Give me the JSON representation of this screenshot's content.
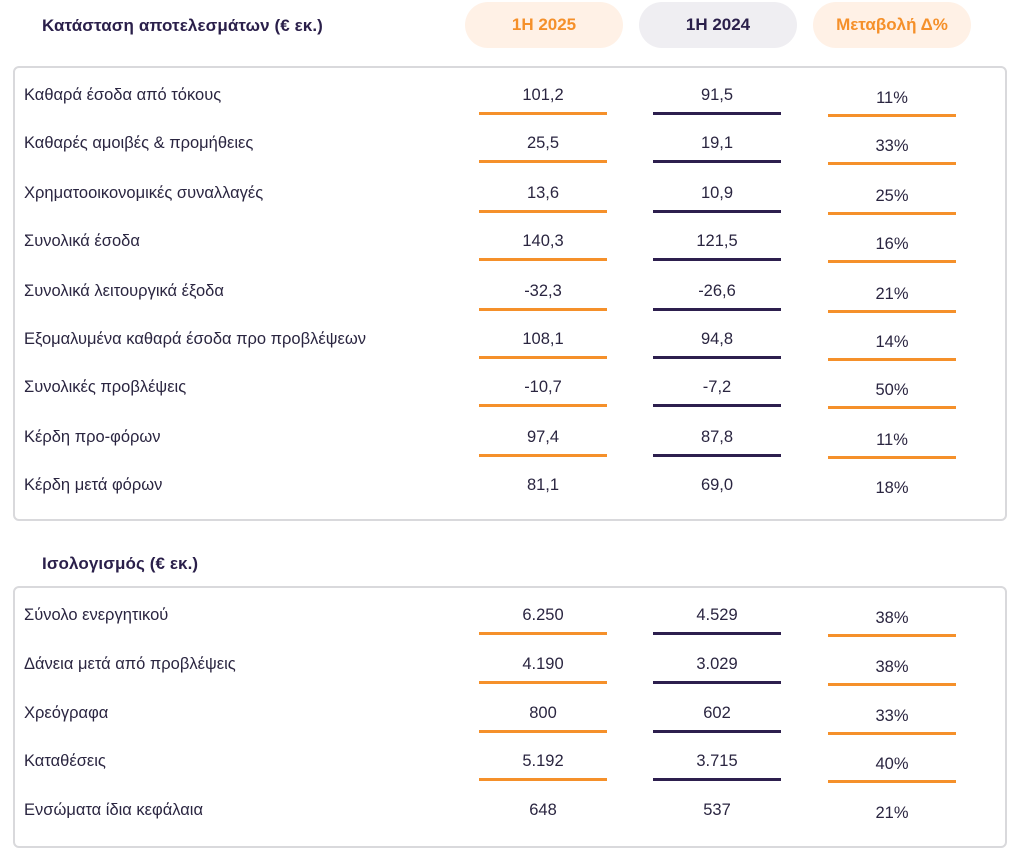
{
  "income": {
    "title": "Κατάσταση αποτελεσμάτων (€ εκ.)",
    "columns": [
      "1H 2025",
      "1H 2024",
      "Μεταβολή Δ%"
    ],
    "rows": [
      {
        "label": "Καθαρά έσοδα από τόκους",
        "v2025": "101,2",
        "v2024": "91,5",
        "change": "11%"
      },
      {
        "label": "Καθαρές αμοιβές & προμήθειες",
        "v2025": "25,5",
        "v2024": "19,1",
        "change": "33%"
      },
      {
        "label": "Χρηματοοικονομικές συναλλαγές",
        "v2025": "13,6",
        "v2024": "10,9",
        "change": "25%"
      },
      {
        "label": "Συνολικά έσοδα",
        "v2025": "140,3",
        "v2024": "121,5",
        "change": "16%"
      },
      {
        "label": "Συνολικά λειτουργικά έξοδα",
        "v2025": "-32,3",
        "v2024": "-26,6",
        "change": "21%"
      },
      {
        "label": "Εξομαλυμένα καθαρά έσοδα προ προβλέψεων",
        "v2025": "108,1",
        "v2024": "94,8",
        "change": "14%"
      },
      {
        "label": "Συνολικές προβλέψεις",
        "v2025": "-10,7",
        "v2024": "-7,2",
        "change": "50%"
      },
      {
        "label": "Κέρδη προ-φόρων",
        "v2025": "97,4",
        "v2024": "87,8",
        "change": "11%"
      },
      {
        "label": "Κέρδη μετά φόρων",
        "v2025": "81,1",
        "v2024": "69,0",
        "change": "18%"
      }
    ]
  },
  "balance": {
    "title": "Ισολογισμός (€ εκ.)",
    "rows": [
      {
        "label": "Σύνολο ενεργητικού",
        "v2025": "6.250",
        "v2024": "4.529",
        "change": "38%"
      },
      {
        "label": "Δάνεια μετά από προβλέψεις",
        "v2025": "4.190",
        "v2024": "3.029",
        "change": "38%"
      },
      {
        "label": "Χρεόγραφα",
        "v2025": "800",
        "v2024": "602",
        "change": "33%"
      },
      {
        "label": "Καταθέσεις",
        "v2025": "5.192",
        "v2024": "3.715",
        "change": "40%"
      },
      {
        "label": "Ενσώματα ίδια κεφάλαια",
        "v2025": "648",
        "v2024": "537",
        "change": "21%"
      }
    ]
  },
  "colors": {
    "accent_orange": "#f5902a",
    "dark_purple": "#2d1f4e",
    "panel_border": "#d9d9dc"
  }
}
